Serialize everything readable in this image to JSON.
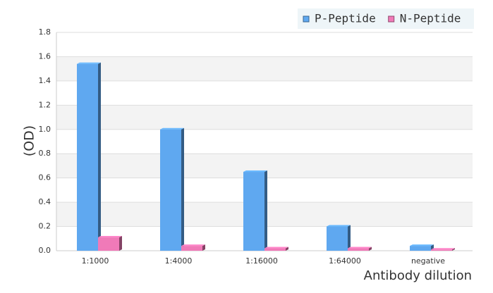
{
  "chart_data": {
    "type": "bar",
    "y_label": "(OD)",
    "x_label": "Antibody dilution",
    "categories": [
      "1:1000",
      "1:4000",
      "1:16000",
      "1:64000",
      "negative"
    ],
    "series": [
      {
        "name": "P-Peptide",
        "color": "#5fa8f0",
        "values": [
          1.54,
          1.0,
          0.65,
          0.2,
          0.04
        ]
      },
      {
        "name": "N-Peptide",
        "color": "#f07ab8",
        "values": [
          0.11,
          0.04,
          0.02,
          0.02,
          0.01
        ]
      }
    ],
    "ylim": [
      0,
      1.8
    ],
    "yticks": [
      {
        "value": 0,
        "label": "0.0"
      },
      0.2,
      0.4,
      0.6,
      0.8,
      {
        "value": 1,
        "label": "1.0"
      },
      1.2,
      1.4,
      1.6,
      1.8
    ],
    "grid": true,
    "legend": "top-right"
  }
}
